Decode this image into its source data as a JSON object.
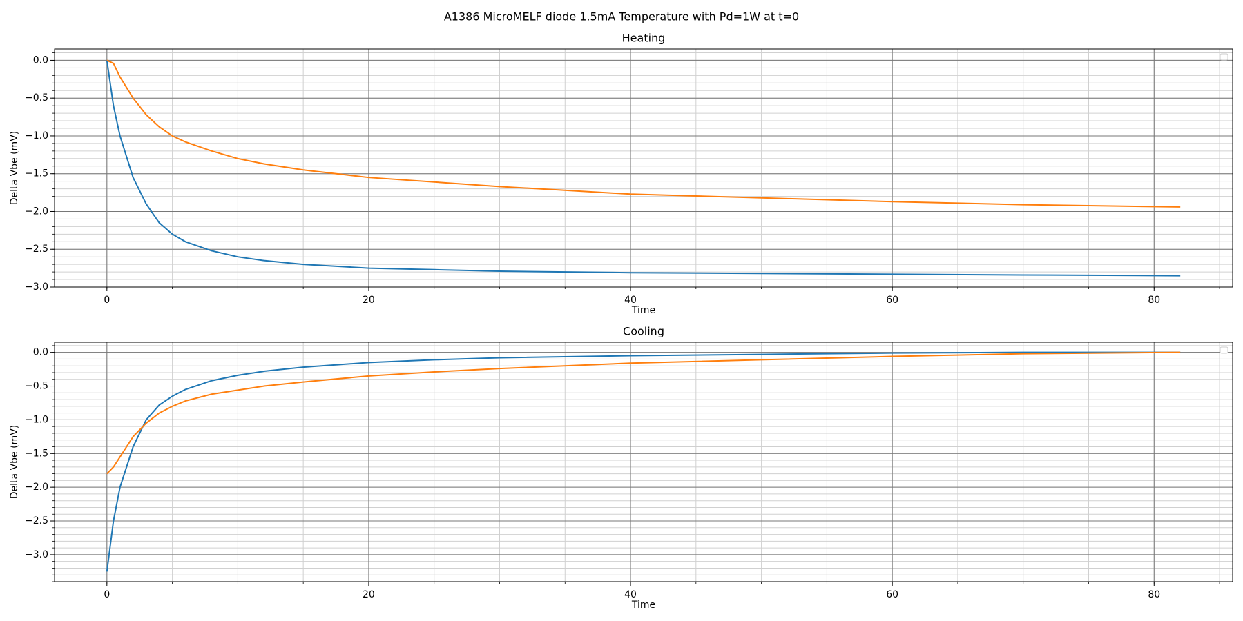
{
  "suptitle": "A1386 MicroMELF diode 1.5mA Temperature with Pd=1W at t=0",
  "chart_data": [
    {
      "type": "line",
      "title": "Heating",
      "x_label": "Time",
      "y_label": "Delta Vbe (mV)",
      "x": [
        0,
        0.5,
        1,
        2,
        3,
        4,
        5,
        6,
        8,
        10,
        12,
        15,
        20,
        25,
        30,
        40,
        50,
        60,
        70,
        82
      ],
      "series": [
        {
          "color": "#1f77b4",
          "values": [
            0,
            -0.6,
            -1.0,
            -1.55,
            -1.9,
            -2.15,
            -2.3,
            -2.4,
            -2.52,
            -2.6,
            -2.65,
            -2.7,
            -2.75,
            -2.77,
            -2.79,
            -2.81,
            -2.82,
            -2.83,
            -2.84,
            -2.85
          ]
        },
        {
          "color": "#ff7f0e",
          "values": [
            0,
            -0.04,
            -0.22,
            -0.5,
            -0.72,
            -0.88,
            -1.0,
            -1.08,
            -1.2,
            -1.3,
            -1.37,
            -1.45,
            -1.55,
            -1.61,
            -1.67,
            -1.77,
            -1.82,
            -1.87,
            -1.91,
            -1.94
          ]
        }
      ],
      "xlim": [
        -4,
        86
      ],
      "xticks": [
        0,
        20,
        40,
        60,
        80
      ],
      "ylim": [
        -3.0,
        0.15
      ],
      "yticks": [
        {
          "value": -3.0,
          "label": "−3.0"
        },
        {
          "value": -2.5,
          "label": "−2.5"
        },
        {
          "value": -2.0,
          "label": "−2.0"
        },
        {
          "value": -1.5,
          "label": "−1.5"
        },
        {
          "value": -1.0,
          "label": "−1.0"
        },
        {
          "value": -0.5,
          "label": "−0.5"
        },
        {
          "value": 0,
          "label": "0.0"
        }
      ],
      "grid": true,
      "minor_grid": true,
      "legend": "upper right"
    },
    {
      "type": "line",
      "title": "Cooling",
      "x_label": "Time",
      "y_label": "Delta Vbe (mV)",
      "x": [
        0,
        0.5,
        1,
        2,
        3,
        4,
        5,
        6,
        8,
        10,
        12,
        15,
        20,
        25,
        30,
        40,
        50,
        60,
        70,
        82
      ],
      "series": [
        {
          "color": "#1f77b4",
          "values": [
            -3.25,
            -2.5,
            -2.0,
            -1.4,
            -1.0,
            -0.78,
            -0.65,
            -0.55,
            -0.42,
            -0.34,
            -0.28,
            -0.22,
            -0.15,
            -0.11,
            -0.08,
            -0.05,
            -0.03,
            -0.01,
            0,
            0
          ]
        },
        {
          "color": "#ff7f0e",
          "values": [
            -1.8,
            -1.7,
            -1.55,
            -1.25,
            -1.05,
            -0.9,
            -0.8,
            -0.72,
            -0.62,
            -0.56,
            -0.5,
            -0.44,
            -0.35,
            -0.29,
            -0.24,
            -0.16,
            -0.11,
            -0.06,
            -0.02,
            0
          ]
        }
      ],
      "xlim": [
        -4,
        86
      ],
      "xticks": [
        0,
        20,
        40,
        60,
        80
      ],
      "ylim": [
        -3.4,
        0.15
      ],
      "yticks": [
        {
          "value": -3.0,
          "label": "−3.0"
        },
        {
          "value": -2.5,
          "label": "−2.5"
        },
        {
          "value": -2.0,
          "label": "−2.0"
        },
        {
          "value": -1.5,
          "label": "−1.5"
        },
        {
          "value": -1.0,
          "label": "−1.0"
        },
        {
          "value": -0.5,
          "label": "−0.5"
        },
        {
          "value": 0,
          "label": "0.0"
        }
      ],
      "grid": true,
      "minor_grid": true,
      "legend": "upper right"
    }
  ]
}
